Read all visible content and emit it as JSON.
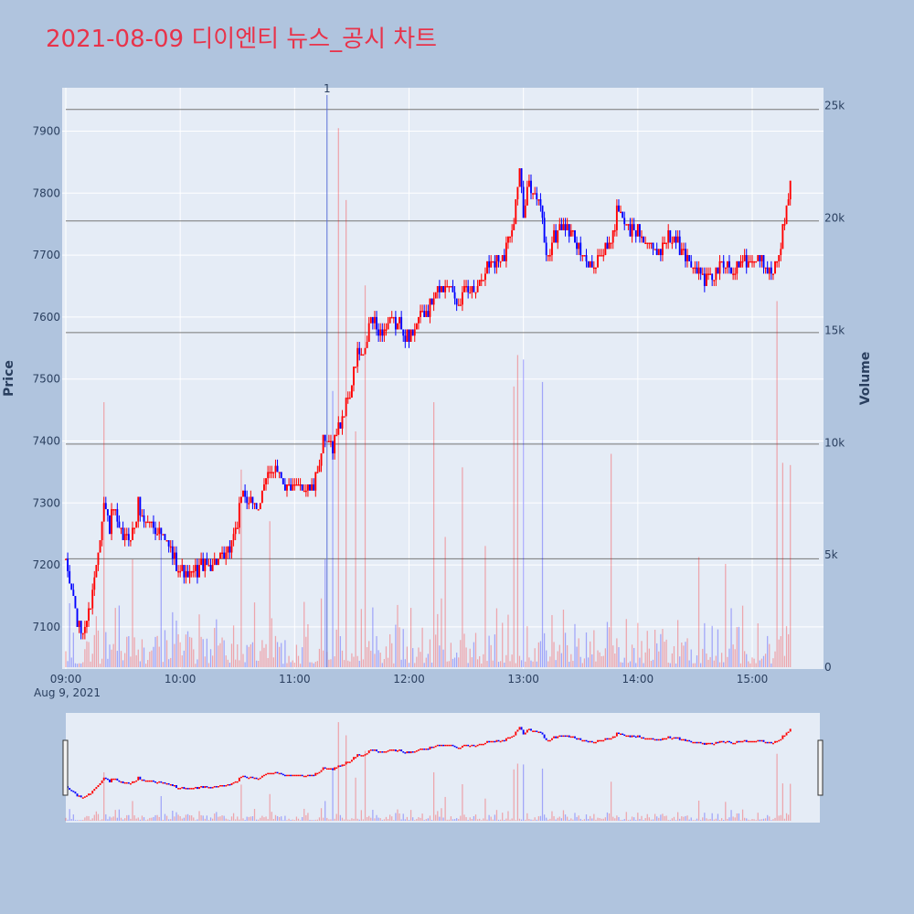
{
  "title": "2021-08-09 디이엔티 뉴스_공시 차트",
  "chart_data": {
    "type": "candlestick",
    "title": "2021-08-09 디이엔티 뉴스_공시 차트",
    "ylabel": "Price",
    "y2label": "Volume",
    "price_ylim": [
      7035,
      7970
    ],
    "volume_ylim": [
      0,
      25800
    ],
    "price_ticks": [
      "7100",
      "7200",
      "7300",
      "7400",
      "7500",
      "7600",
      "7700",
      "7800",
      "7900"
    ],
    "volume_ticks": [
      "0",
      "5k",
      "10k",
      "15k",
      "20k",
      "25k"
    ],
    "time_ticks": [
      "09:00",
      "10:00",
      "11:00",
      "12:00",
      "13:00",
      "14:00",
      "15:00"
    ],
    "date_label": "Aug 9, 2021",
    "x_range_minutes": [
      540,
      935
    ],
    "horizontal_lines": [
      7210,
      7395,
      7575,
      7755,
      7935
    ],
    "news_marker": {
      "time": "11:17",
      "label": "1"
    },
    "colors": {
      "up": "#ff0000",
      "down": "#0000ff",
      "bg": "#b0c4de",
      "plot": "#e5ecf6",
      "title": "#e8334a"
    },
    "price_anchors": [
      [
        "09:00",
        7200
      ],
      [
        "09:03",
        7160
      ],
      [
        "09:06",
        7110
      ],
      [
        "09:09",
        7090
      ],
      [
        "09:12",
        7120
      ],
      [
        "09:15",
        7180
      ],
      [
        "09:18",
        7250
      ],
      [
        "09:20",
        7300
      ],
      [
        "09:23",
        7260
      ],
      [
        "09:25",
        7290
      ],
      [
        "09:28",
        7250
      ],
      [
        "09:32",
        7240
      ],
      [
        "09:36",
        7260
      ],
      [
        "09:38",
        7300
      ],
      [
        "09:40",
        7270
      ],
      [
        "09:45",
        7270
      ],
      [
        "09:50",
        7250
      ],
      [
        "09:55",
        7220
      ],
      [
        "10:00",
        7190
      ],
      [
        "10:05",
        7180
      ],
      [
        "10:12",
        7200
      ],
      [
        "10:18",
        7200
      ],
      [
        "10:25",
        7220
      ],
      [
        "10:30",
        7270
      ],
      [
        "10:33",
        7320
      ],
      [
        "10:36",
        7300
      ],
      [
        "10:40",
        7290
      ],
      [
        "10:45",
        7340
      ],
      [
        "10:50",
        7360
      ],
      [
        "10:55",
        7330
      ],
      [
        "11:00",
        7320
      ],
      [
        "11:05",
        7330
      ],
      [
        "11:10",
        7325
      ],
      [
        "11:15",
        7395
      ],
      [
        "11:20",
        7395
      ],
      [
        "11:25",
        7440
      ],
      [
        "11:30",
        7490
      ],
      [
        "11:33",
        7540
      ],
      [
        "11:36",
        7530
      ],
      [
        "11:40",
        7600
      ],
      [
        "11:45",
        7570
      ],
      [
        "11:50",
        7590
      ],
      [
        "11:55",
        7590
      ],
      [
        "12:00",
        7560
      ],
      [
        "12:05",
        7600
      ],
      [
        "12:10",
        7610
      ],
      [
        "12:15",
        7640
      ],
      [
        "12:20",
        7660
      ],
      [
        "12:25",
        7630
      ],
      [
        "12:30",
        7640
      ],
      [
        "12:35",
        7650
      ],
      [
        "12:40",
        7680
      ],
      [
        "12:45",
        7690
      ],
      [
        "12:50",
        7700
      ],
      [
        "12:55",
        7760
      ],
      [
        "12:58",
        7840
      ],
      [
        "13:00",
        7760
      ],
      [
        "13:03",
        7820
      ],
      [
        "13:06",
        7800
      ],
      [
        "13:10",
        7760
      ],
      [
        "13:12",
        7690
      ],
      [
        "13:15",
        7720
      ],
      [
        "13:20",
        7750
      ],
      [
        "13:25",
        7740
      ],
      [
        "13:30",
        7700
      ],
      [
        "13:35",
        7680
      ],
      [
        "13:40",
        7700
      ],
      [
        "13:45",
        7710
      ],
      [
        "13:50",
        7780
      ],
      [
        "13:55",
        7740
      ],
      [
        "14:00",
        7740
      ],
      [
        "14:05",
        7720
      ],
      [
        "14:10",
        7700
      ],
      [
        "14:15",
        7730
      ],
      [
        "14:20",
        7720
      ],
      [
        "14:25",
        7700
      ],
      [
        "14:30",
        7680
      ],
      [
        "14:35",
        7660
      ],
      [
        "14:40",
        7670
      ],
      [
        "14:45",
        7690
      ],
      [
        "14:50",
        7670
      ],
      [
        "14:55",
        7700
      ],
      [
        "15:00",
        7690
      ],
      [
        "15:05",
        7690
      ],
      [
        "15:10",
        7670
      ],
      [
        "15:14",
        7700
      ],
      [
        "15:17",
        7760
      ],
      [
        "15:20",
        7830
      ]
    ],
    "volume_spikes": [
      [
        "09:20",
        11800
      ],
      [
        "09:35",
        4800
      ],
      [
        "09:50",
        6000
      ],
      [
        "10:32",
        8800
      ],
      [
        "10:47",
        6500
      ],
      [
        "11:16",
        4800
      ],
      [
        "11:20",
        12300
      ],
      [
        "11:23",
        24000
      ],
      [
        "11:27",
        20800
      ],
      [
        "11:32",
        10500
      ],
      [
        "11:37",
        17000
      ],
      [
        "12:13",
        11800
      ],
      [
        "12:19",
        5800
      ],
      [
        "12:28",
        8900
      ],
      [
        "12:40",
        5400
      ],
      [
        "12:55",
        12500
      ],
      [
        "12:57",
        13900
      ],
      [
        "13:00",
        13700
      ],
      [
        "13:10",
        12700
      ],
      [
        "13:46",
        9500
      ],
      [
        "14:32",
        4900
      ],
      [
        "14:46",
        4600
      ],
      [
        "15:13",
        16300
      ],
      [
        "15:16",
        9100
      ],
      [
        "15:20",
        9000
      ]
    ]
  }
}
